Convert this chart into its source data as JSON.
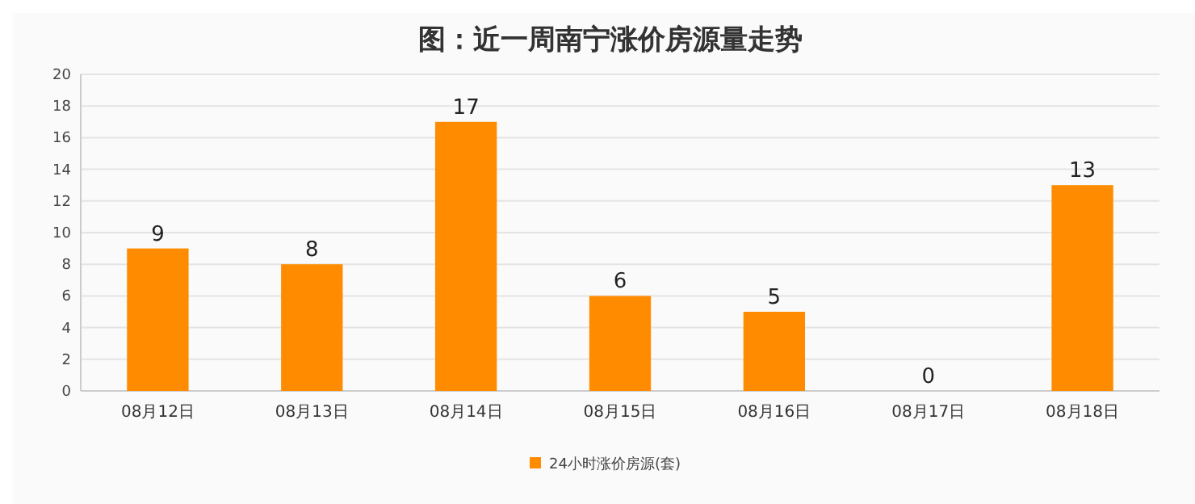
{
  "chart_data": {
    "type": "bar",
    "title": "图：近一周南宁涨价房源量走势",
    "categories": [
      "08月12日",
      "08月13日",
      "08月14日",
      "08月15日",
      "08月16日",
      "08月17日",
      "08月18日"
    ],
    "series": [
      {
        "name": "24小时涨价房源(套)",
        "color": "#ff8c00",
        "values": [
          9,
          8,
          17,
          6,
          5,
          0,
          13
        ]
      }
    ],
    "ylim": [
      0,
      20
    ],
    "yticks": [
      0,
      2,
      4,
      6,
      8,
      10,
      12,
      14,
      16,
      18,
      20
    ],
    "grid": "y",
    "legend": "bottom",
    "data_labels": true
  }
}
